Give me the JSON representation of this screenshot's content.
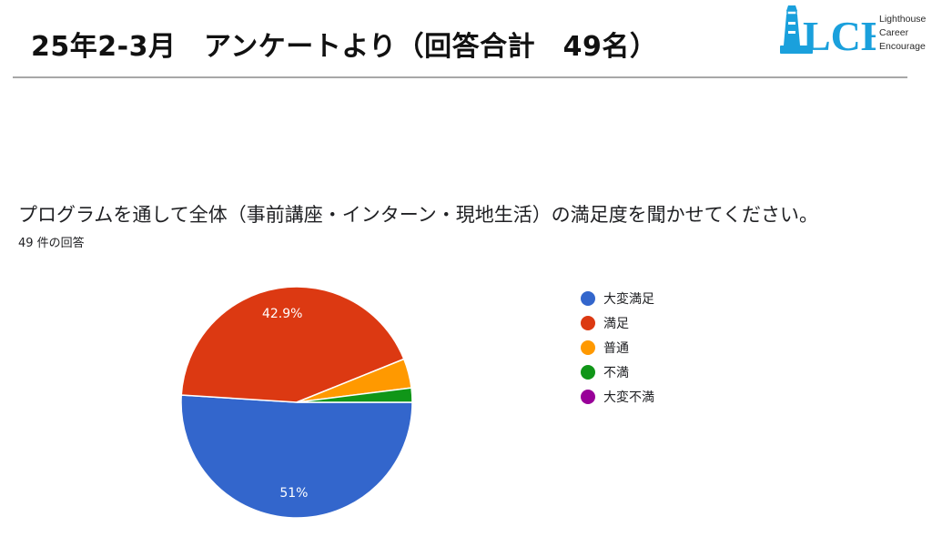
{
  "header": {
    "title": "25年2-3月　アンケートより（回答合計　49名）"
  },
  "logo": {
    "letters": "LCE",
    "lines": [
      "Lighthouse",
      "Career",
      "Encourage"
    ],
    "color": "#1aa0dc"
  },
  "question": {
    "text": "プログラムを通して全体（事前講座・インターン・現地生活）の満足度を聞かせてください。",
    "response_count": "49 件の回答"
  },
  "chart_data": {
    "type": "pie",
    "total_responses": 49,
    "categories": [
      "大変満足",
      "満足",
      "普通",
      "不満",
      "大変不満"
    ],
    "values": [
      51.0,
      42.9,
      4.1,
      2.0,
      0.0
    ],
    "colors": [
      "#3366cc",
      "#dc3912",
      "#ff9900",
      "#109618",
      "#990099"
    ],
    "slice_labels": [
      "51%",
      "42.9%",
      "",
      "",
      ""
    ],
    "legend_position": "right"
  }
}
